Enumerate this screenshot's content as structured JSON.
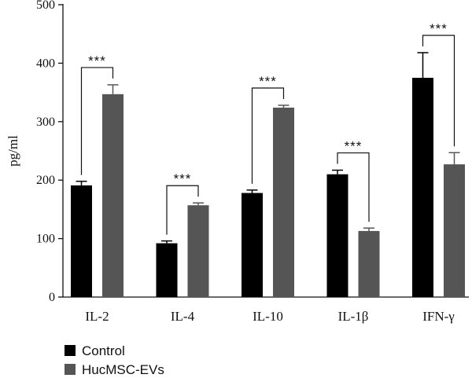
{
  "chart_data": {
    "type": "bar",
    "title": "",
    "xlabel": "",
    "ylabel": "pg/ml",
    "ylim": [
      0,
      500
    ],
    "yticks": [
      0,
      100,
      200,
      300,
      400,
      500
    ],
    "categories": [
      "IL-2",
      "IL-4",
      "IL-10",
      "IL-1β",
      "IFN-γ"
    ],
    "series": [
      {
        "name": "Control",
        "color": "#000000",
        "values": [
          191,
          92,
          178,
          210,
          375
        ],
        "errors": [
          7,
          4,
          5,
          7,
          43
        ]
      },
      {
        "name": "HucMSC-EVs",
        "color": "#555555",
        "values": [
          347,
          157,
          324,
          113,
          227
        ],
        "errors": [
          16,
          4,
          4,
          5,
          20
        ]
      }
    ],
    "significance": [
      "***",
      "***",
      "***",
      "***",
      "***"
    ],
    "grid": false,
    "legend_position": "bottom-left"
  }
}
